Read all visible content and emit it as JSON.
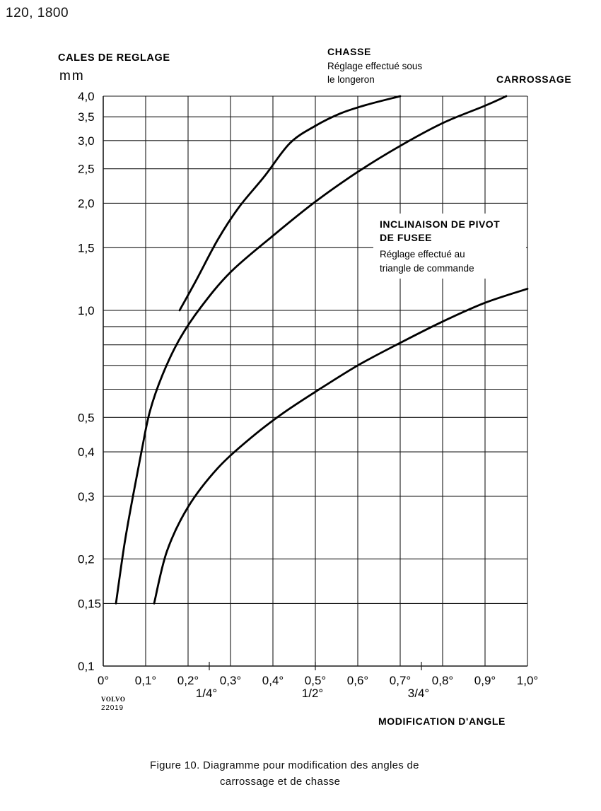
{
  "header": {
    "models": "120, 1800"
  },
  "chart_data": {
    "type": "line",
    "ylabel": "CALES DE REGLAGE",
    "yunit": "mm",
    "xlabel": "MODIFICATION D'ANGLE",
    "yscale": "log",
    "ylim": [
      0.1,
      4.0
    ],
    "xlim": [
      0,
      1.0
    ],
    "grid": true,
    "x_ticks": [
      {
        "v": 0,
        "label": "0°"
      },
      {
        "v": 0.1,
        "label": "0,1°"
      },
      {
        "v": 0.2,
        "label": "0,2°"
      },
      {
        "v": 0.3,
        "label": "0,3°"
      },
      {
        "v": 0.4,
        "label": "0,4°"
      },
      {
        "v": 0.5,
        "label": "0,5°"
      },
      {
        "v": 0.6,
        "label": "0,6°"
      },
      {
        "v": 0.7,
        "label": "0,7°"
      },
      {
        "v": 0.8,
        "label": "0,8°"
      },
      {
        "v": 0.9,
        "label": "0,9°"
      },
      {
        "v": 1.0,
        "label": "1,0°"
      }
    ],
    "x_fraction_ticks": [
      {
        "v": 0.25,
        "label": "1/4°"
      },
      {
        "v": 0.5,
        "label": "1/2°"
      },
      {
        "v": 0.75,
        "label": "3/4°"
      }
    ],
    "y_ticks": [
      {
        "v": 0.1,
        "label": "0,1"
      },
      {
        "v": 0.15,
        "label": "0,15"
      },
      {
        "v": 0.2,
        "label": "0,2"
      },
      {
        "v": 0.3,
        "label": "0,3"
      },
      {
        "v": 0.4,
        "label": "0,4"
      },
      {
        "v": 0.5,
        "label": "0,5"
      },
      {
        "v": 1.0,
        "label": "1,0"
      },
      {
        "v": 1.5,
        "label": "1,5"
      },
      {
        "v": 2.0,
        "label": "2,0"
      },
      {
        "v": 2.5,
        "label": "2,5"
      },
      {
        "v": 3.0,
        "label": "3,0"
      },
      {
        "v": 3.5,
        "label": "3,5"
      },
      {
        "v": 4.0,
        "label": "4,0"
      }
    ],
    "y_extra_gridlines": [
      0.6,
      0.7,
      0.8,
      0.9
    ],
    "series": [
      {
        "name": "CHASSE",
        "note": [
          "Réglage effectué sous",
          "le longeron"
        ],
        "points": [
          [
            0.18,
            1.0
          ],
          [
            0.22,
            1.22
          ],
          [
            0.27,
            1.58
          ],
          [
            0.32,
            1.95
          ],
          [
            0.38,
            2.38
          ],
          [
            0.44,
            2.95
          ],
          [
            0.5,
            3.3
          ],
          [
            0.56,
            3.58
          ],
          [
            0.62,
            3.78
          ],
          [
            0.7,
            4.0
          ]
        ]
      },
      {
        "name": "CARROSSAGE",
        "note": [],
        "points": [
          [
            0.03,
            0.15
          ],
          [
            0.05,
            0.22
          ],
          [
            0.07,
            0.3
          ],
          [
            0.09,
            0.4
          ],
          [
            0.11,
            0.52
          ],
          [
            0.14,
            0.66
          ],
          [
            0.18,
            0.83
          ],
          [
            0.23,
            1.02
          ],
          [
            0.3,
            1.28
          ],
          [
            0.4,
            1.62
          ],
          [
            0.5,
            2.02
          ],
          [
            0.6,
            2.45
          ],
          [
            0.7,
            2.9
          ],
          [
            0.8,
            3.36
          ],
          [
            0.9,
            3.76
          ],
          [
            0.95,
            4.0
          ]
        ]
      },
      {
        "name": "INCLINAISON DE PIVOT DE FUSEE",
        "note": [
          "Réglage effectué au",
          "triangle de commande"
        ],
        "points": [
          [
            0.12,
            0.15
          ],
          [
            0.15,
            0.21
          ],
          [
            0.2,
            0.28
          ],
          [
            0.27,
            0.36
          ],
          [
            0.35,
            0.44
          ],
          [
            0.42,
            0.51
          ],
          [
            0.5,
            0.59
          ],
          [
            0.6,
            0.7
          ],
          [
            0.7,
            0.81
          ],
          [
            0.8,
            0.93
          ],
          [
            0.9,
            1.05
          ],
          [
            1.0,
            1.15
          ]
        ]
      }
    ]
  },
  "labels": {
    "chasse_title": "CHASSE",
    "chasse_note1": "Réglage effectué sous",
    "chasse_note2": "le longeron",
    "carrossage_title": "CARROSSAGE",
    "pivot_title1": "INCLINAISON DE PIVOT",
    "pivot_title2": "DE FUSEE",
    "pivot_note1": "Réglage effectué au",
    "pivot_note2": "triangle de commande"
  },
  "logo": {
    "brand": "VOLVO",
    "number": "22019"
  },
  "caption": {
    "line1": "Figure 10.  Diagramme pour modification des angles de",
    "line2": "carrossage et de chasse"
  }
}
